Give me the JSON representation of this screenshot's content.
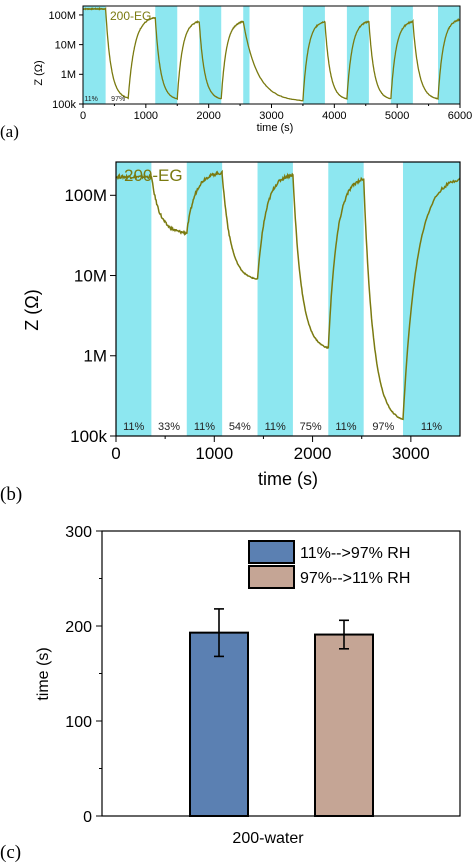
{
  "colors": {
    "humidity_band": "#8de7f0",
    "curve": "#7a7a10",
    "bar_fill_1": "#5b80b2",
    "bar_fill_2": "#c5a595",
    "axis": "#000000"
  },
  "chart_data": [
    {
      "type": "line",
      "panel_label": "(a)",
      "annotation": "200-EG",
      "xlabel": "time (s)",
      "ylabel": "Z (Ω)",
      "xlim": [
        0,
        6000
      ],
      "ylim": [
        100000,
        200000000
      ],
      "y_scale": "log",
      "x_ticks": [
        0,
        1000,
        2000,
        3000,
        4000,
        5000,
        6000
      ],
      "y_ticks": [
        100000,
        1000000,
        10000000,
        100000000
      ],
      "y_tick_labels": [
        "100k",
        "1M",
        "10M",
        "100M"
      ],
      "rh_labels": [
        {
          "text": "11%",
          "x": 130
        },
        {
          "text": "97%",
          "x": 560
        }
      ],
      "bands": [
        [
          0,
          360
        ],
        [
          1150,
          1500
        ],
        [
          1850,
          2200
        ],
        [
          2550,
          2650
        ],
        [
          3500,
          3850
        ],
        [
          4200,
          4550
        ],
        [
          4900,
          5250
        ],
        [
          5650,
          6000
        ]
      ],
      "segments": [
        {
          "t0": 0,
          "t1": 360,
          "mode": "flat",
          "v": 160000000.0
        },
        {
          "t0": 360,
          "t1": 720,
          "mode": "down",
          "v0": 160000000.0,
          "v1": 160000.0
        },
        {
          "t0": 720,
          "t1": 1150,
          "mode": "up",
          "v0": 160000.0,
          "v1": 80000000.0
        },
        {
          "t0": 1150,
          "t1": 1500,
          "mode": "down",
          "v0": 80000000.0,
          "v1": 150000.0
        },
        {
          "t0": 1500,
          "t1": 1850,
          "mode": "up",
          "v0": 150000.0,
          "v1": 60000000.0
        },
        {
          "t0": 1850,
          "t1": 2200,
          "mode": "down",
          "v0": 60000000.0,
          "v1": 150000.0
        },
        {
          "t0": 2200,
          "t1": 2550,
          "mode": "up",
          "v0": 150000.0,
          "v1": 60000000.0
        },
        {
          "t0": 2550,
          "t1": 3500,
          "mode": "down",
          "v0": 60000000.0,
          "v1": 130000.0
        },
        {
          "t0": 3500,
          "t1": 3850,
          "mode": "up",
          "v0": 130000.0,
          "v1": 60000000.0
        },
        {
          "t0": 3850,
          "t1": 4200,
          "mode": "down",
          "v0": 60000000.0,
          "v1": 150000.0
        },
        {
          "t0": 4200,
          "t1": 4550,
          "mode": "up",
          "v0": 150000.0,
          "v1": 60000000.0
        },
        {
          "t0": 4550,
          "t1": 4900,
          "mode": "down",
          "v0": 60000000.0,
          "v1": 150000.0
        },
        {
          "t0": 4900,
          "t1": 5250,
          "mode": "up",
          "v0": 150000.0,
          "v1": 60000000.0
        },
        {
          "t0": 5250,
          "t1": 5650,
          "mode": "down",
          "v0": 60000000.0,
          "v1": 150000.0
        },
        {
          "t0": 5650,
          "t1": 6000,
          "mode": "up",
          "v0": 150000.0,
          "v1": 70000000.0
        }
      ]
    },
    {
      "type": "line",
      "panel_label": "(b)",
      "annotation": "200-EG",
      "xlabel": "time (s)",
      "ylabel": "Z (Ω)",
      "xlim": [
        0,
        3500
      ],
      "ylim": [
        100000,
        260000000
      ],
      "y_scale": "log",
      "x_ticks": [
        0,
        1000,
        2000,
        3000
      ],
      "y_ticks": [
        100000,
        1000000,
        10000000,
        100000000
      ],
      "y_tick_labels": [
        "100k",
        "1M",
        "10M",
        "100M"
      ],
      "bands": [
        [
          0,
          360
        ],
        [
          720,
          1080
        ],
        [
          1440,
          1800
        ],
        [
          2160,
          2520
        ],
        [
          2920,
          3500
        ]
      ],
      "rh_labels": [
        {
          "text": "11%",
          "x": 180
        },
        {
          "text": "33%",
          "x": 540
        },
        {
          "text": "11%",
          "x": 900
        },
        {
          "text": "54%",
          "x": 1260
        },
        {
          "text": "11%",
          "x": 1620
        },
        {
          "text": "75%",
          "x": 1980
        },
        {
          "text": "11%",
          "x": 2340
        },
        {
          "text": "97%",
          "x": 2720
        },
        {
          "text": "11%",
          "x": 3210
        }
      ],
      "segments": [
        {
          "t0": 0,
          "t1": 360,
          "mode": "flat",
          "v": 170000000.0
        },
        {
          "t0": 360,
          "t1": 720,
          "mode": "down",
          "v0": 170000000.0,
          "v1": 34000000.0
        },
        {
          "t0": 720,
          "t1": 1080,
          "mode": "up",
          "v0": 34000000.0,
          "v1": 190000000.0
        },
        {
          "t0": 1080,
          "t1": 1440,
          "mode": "down",
          "v0": 190000000.0,
          "v1": 9000000.0
        },
        {
          "t0": 1440,
          "t1": 1800,
          "mode": "up",
          "v0": 9000000.0,
          "v1": 180000000.0
        },
        {
          "t0": 1800,
          "t1": 2160,
          "mode": "down",
          "v0": 180000000.0,
          "v1": 1250000.0
        },
        {
          "t0": 2160,
          "t1": 2520,
          "mode": "up",
          "v0": 1250000.0,
          "v1": 160000000.0
        },
        {
          "t0": 2520,
          "t1": 2920,
          "mode": "down",
          "v0": 160000000.0,
          "v1": 160000.0
        },
        {
          "t0": 2920,
          "t1": 3500,
          "mode": "up",
          "v0": 160000.0,
          "v1": 160000000.0
        }
      ]
    },
    {
      "type": "bar",
      "panel_label": "(c)",
      "xlabel": "200-water",
      "ylabel": "time (s)",
      "ylim": [
        0,
        300
      ],
      "y_ticks": [
        0,
        100,
        200,
        300
      ],
      "series": [
        {
          "name": "11%-->97% RH",
          "value": 193,
          "error": 25
        },
        {
          "name": "97%-->11% RH",
          "value": 191,
          "error": 15
        }
      ],
      "legend_position": "top-right"
    }
  ]
}
